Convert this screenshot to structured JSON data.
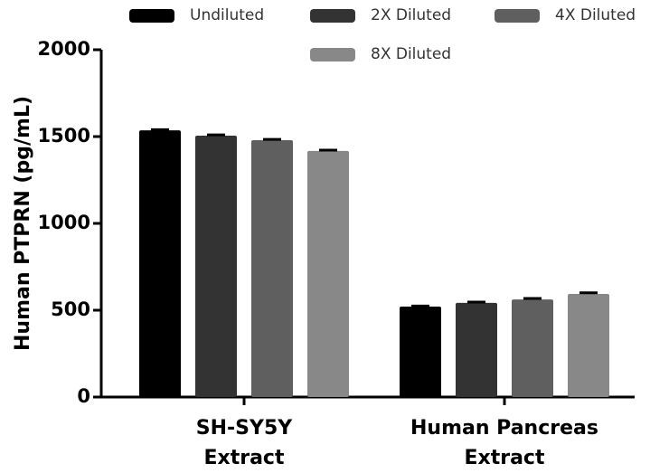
{
  "chart_data": {
    "type": "bar",
    "ylabel": "Human  PTPRN (pg/mL)",
    "categories": [
      [
        "SH-SY5Y",
        "Extract"
      ],
      [
        "Human Pancreas",
        "Extract"
      ]
    ],
    "series": [
      {
        "name": "Undiluted",
        "color": "#000000",
        "values": [
          1536,
          521
        ],
        "errors": [
          4,
          3
        ]
      },
      {
        "name": "2X Diluted",
        "color": "#333333",
        "values": [
          1505,
          542
        ],
        "errors": [
          5,
          5
        ]
      },
      {
        "name": "4X Diluted",
        "color": "#5f5f5f",
        "values": [
          1479,
          562
        ],
        "errors": [
          5,
          6
        ]
      },
      {
        "name": "8X Diluted",
        "color": "#888888",
        "values": [
          1417,
          594
        ],
        "errors": [
          5,
          6
        ]
      }
    ],
    "ylim": [
      0,
      2000
    ],
    "yticks": [
      0,
      500,
      1000,
      1500,
      2000
    ]
  }
}
